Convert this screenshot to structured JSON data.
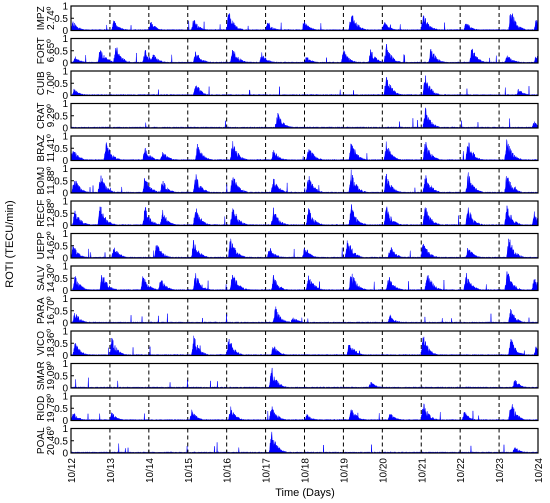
{
  "chart_data": {
    "type": "area",
    "title": "",
    "xlabel": "Time (Days)",
    "ylabel": "ROTI (TECU/min)",
    "x_tick_labels": [
      "10/12",
      "10/13",
      "10/14",
      "10/15",
      "10/16",
      "10/17",
      "10/18",
      "10/19",
      "10/20",
      "10/21",
      "10/22",
      "10/23",
      "10/24"
    ],
    "xlim": [
      0,
      12
    ],
    "ylim": [
      0,
      1
    ],
    "y_tick_labels": [
      "0",
      "0.5",
      "1"
    ],
    "vertical_gridlines": "dashed at each day",
    "series_color": "#0000ff",
    "panels": [
      {
        "station": "IMPZ",
        "lat": "2.74º",
        "bursts": [
          [
            0.05,
            0.4
          ],
          [
            1.1,
            0.45
          ],
          [
            2.05,
            0.4
          ],
          [
            3.15,
            0.5
          ],
          [
            4.05,
            0.9
          ],
          [
            5.05,
            0.35
          ],
          [
            6.0,
            0.4
          ],
          [
            7.2,
            0.9
          ],
          [
            8.05,
            0.4
          ],
          [
            9.05,
            0.8
          ],
          [
            10.15,
            0.4
          ],
          [
            11.3,
            0.95
          ],
          [
            11.95,
            0.5
          ]
        ]
      },
      {
        "station": "FORT",
        "lat": "6.65º",
        "bursts": [
          [
            0.1,
            0.3
          ],
          [
            0.75,
            0.7
          ],
          [
            1.15,
            0.8
          ],
          [
            1.9,
            0.6
          ],
          [
            2.1,
            0.45
          ],
          [
            3.2,
            0.6
          ],
          [
            4.15,
            0.75
          ],
          [
            4.9,
            0.45
          ],
          [
            6.05,
            0.3
          ],
          [
            7.0,
            0.6
          ],
          [
            7.7,
            0.6
          ],
          [
            8.1,
            0.85
          ],
          [
            9.25,
            0.7
          ],
          [
            10.3,
            0.7
          ],
          [
            11.2,
            0.45
          ],
          [
            11.95,
            0.4
          ]
        ]
      },
      {
        "station": "CUIB",
        "lat": "7.00º",
        "bursts": [
          [
            0.08,
            0.3
          ],
          [
            3.2,
            0.6
          ],
          [
            8.1,
            0.95
          ],
          [
            9.1,
            0.9
          ],
          [
            11.5,
            0.3
          ]
        ]
      },
      {
        "station": "CRAT",
        "lat": "9.29º",
        "bursts": [
          [
            5.3,
            0.7
          ],
          [
            9.1,
            0.9
          ],
          [
            11.9,
            0.3
          ]
        ]
      },
      {
        "station": "BRAZ",
        "lat": "11.41º",
        "bursts": [
          [
            0.05,
            0.55
          ],
          [
            0.9,
            0.85
          ],
          [
            1.9,
            0.6
          ],
          [
            2.35,
            0.45
          ],
          [
            3.25,
            0.7
          ],
          [
            4.15,
            0.9
          ],
          [
            5.2,
            0.5
          ],
          [
            6.1,
            0.7
          ],
          [
            7.2,
            0.9
          ],
          [
            8.1,
            0.8
          ],
          [
            9.1,
            0.9
          ],
          [
            10.2,
            0.9
          ],
          [
            11.2,
            0.95
          ]
        ]
      },
      {
        "station": "BOMJ",
        "lat": "11.88º",
        "bursts": [
          [
            0.08,
            0.75
          ],
          [
            0.75,
            0.9
          ],
          [
            1.9,
            0.8
          ],
          [
            2.35,
            0.6
          ],
          [
            3.2,
            0.85
          ],
          [
            4.15,
            0.95
          ],
          [
            5.2,
            0.7
          ],
          [
            6.1,
            0.8
          ],
          [
            7.2,
            0.95
          ],
          [
            8.1,
            0.85
          ],
          [
            9.1,
            0.95
          ],
          [
            10.2,
            0.9
          ],
          [
            11.2,
            0.95
          ]
        ]
      },
      {
        "station": "RECF",
        "lat": "12.88º",
        "bursts": [
          [
            0.1,
            0.75
          ],
          [
            0.75,
            0.95
          ],
          [
            1.9,
            0.85
          ],
          [
            2.35,
            0.7
          ],
          [
            3.2,
            0.85
          ],
          [
            4.15,
            0.95
          ],
          [
            5.2,
            0.75
          ],
          [
            6.1,
            0.8
          ],
          [
            7.2,
            0.95
          ],
          [
            8.1,
            0.9
          ],
          [
            9.1,
            0.95
          ],
          [
            10.2,
            0.85
          ],
          [
            11.2,
            0.95
          ],
          [
            11.9,
            0.6
          ]
        ]
      },
      {
        "station": "UEPP",
        "lat": "14.62º",
        "bursts": [
          [
            0.05,
            0.6
          ],
          [
            1.1,
            0.55
          ],
          [
            2.2,
            0.7
          ],
          [
            3.15,
            0.8
          ],
          [
            4.1,
            0.95
          ],
          [
            5.1,
            0.5
          ],
          [
            6.0,
            0.5
          ],
          [
            7.1,
            0.95
          ],
          [
            8.2,
            0.55
          ],
          [
            9.05,
            0.8
          ],
          [
            10.2,
            0.5
          ],
          [
            11.25,
            0.95
          ]
        ]
      },
      {
        "station": "SALV",
        "lat": "14.30º",
        "bursts": [
          [
            0.1,
            0.7
          ],
          [
            0.8,
            0.85
          ],
          [
            1.85,
            0.75
          ],
          [
            2.3,
            0.6
          ],
          [
            3.2,
            0.8
          ],
          [
            4.15,
            0.9
          ],
          [
            5.2,
            0.65
          ],
          [
            6.1,
            0.75
          ],
          [
            7.2,
            0.9
          ],
          [
            8.15,
            0.7
          ],
          [
            9.15,
            0.9
          ],
          [
            10.15,
            0.8
          ],
          [
            11.2,
            0.95
          ],
          [
            11.9,
            0.6
          ]
        ]
      },
      {
        "station": "PARA",
        "lat": "16.70º",
        "bursts": [
          [
            0.1,
            0.5
          ],
          [
            5.25,
            0.75
          ],
          [
            5.7,
            0.3
          ],
          [
            8.2,
            0.35
          ],
          [
            11.3,
            0.6
          ]
        ]
      },
      {
        "station": "VICO",
        "lat": "18.36º",
        "bursts": [
          [
            0.1,
            0.6
          ],
          [
            1.05,
            0.8
          ],
          [
            3.15,
            0.9
          ],
          [
            4.05,
            0.85
          ],
          [
            5.2,
            0.5
          ],
          [
            7.15,
            0.7
          ],
          [
            9.05,
            0.9
          ],
          [
            11.3,
            0.8
          ],
          [
            11.95,
            0.4
          ]
        ]
      },
      {
        "station": "SMAR",
        "lat": "19.09º",
        "bursts": [
          [
            5.15,
            0.95
          ],
          [
            7.7,
            0.3
          ],
          [
            11.4,
            0.4
          ]
        ]
      },
      {
        "station": "RIOD",
        "lat": "19.78º",
        "bursts": [
          [
            0.05,
            0.4
          ],
          [
            1.05,
            0.35
          ],
          [
            3.1,
            0.45
          ],
          [
            4.1,
            0.6
          ],
          [
            5.15,
            0.7
          ],
          [
            6.05,
            0.3
          ],
          [
            7.2,
            0.6
          ],
          [
            8.2,
            0.35
          ],
          [
            9.05,
            0.8
          ],
          [
            10.1,
            0.4
          ],
          [
            11.3,
            0.9
          ]
        ]
      },
      {
        "station": "POAL",
        "lat": "20.46º",
        "bursts": [
          [
            5.15,
            0.95
          ],
          [
            11.4,
            0.3
          ]
        ]
      }
    ]
  }
}
